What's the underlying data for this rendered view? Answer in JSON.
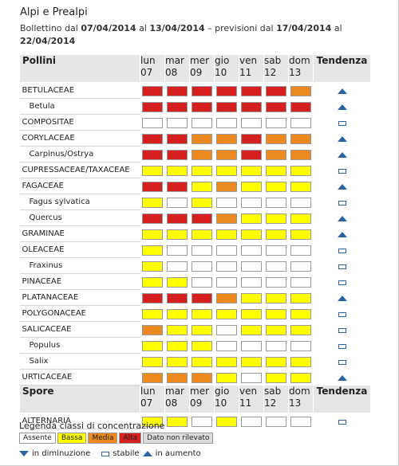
{
  "colors": {
    "Assente": "#ffffff",
    "Bassa": "#ffff00",
    "Media": "#ed8a1f",
    "Alta": "#d62020",
    "Dato non rilevato": "#dcdcdc"
  },
  "region_title": "Alpi e Prealpi",
  "bulletin": {
    "prefix": "Bollettino dal ",
    "start": "07/04/2014",
    "mid": " al ",
    "end": "13/04/2014",
    "forecast_prefix": " – previsioni dal ",
    "forecast_start": "17/04/2014",
    "forecast_mid": " al ",
    "forecast_end": "22/04/2014"
  },
  "headers": {
    "pollini": "Pollini",
    "spore": "Spore",
    "tendenza": "Tendenza",
    "days": [
      {
        "dow": "lun",
        "day": "07"
      },
      {
        "dow": "mar",
        "day": "08"
      },
      {
        "dow": "mer",
        "day": "09"
      },
      {
        "dow": "gio",
        "day": "10"
      },
      {
        "dow": "ven",
        "day": "11"
      },
      {
        "dow": "sab",
        "day": "12"
      },
      {
        "dow": "dom",
        "day": "13"
      }
    ]
  },
  "pollen_rows": [
    {
      "name": "BETULACEAE",
      "sub": false,
      "levels": [
        "Alta",
        "Alta",
        "Alta",
        "Alta",
        "Alta",
        "Alta",
        "Media"
      ],
      "trend": "up"
    },
    {
      "name": "Betula",
      "sub": true,
      "levels": [
        "Alta",
        "Alta",
        "Alta",
        "Alta",
        "Alta",
        "Alta",
        "Alta"
      ],
      "trend": "up"
    },
    {
      "name": "COMPOSITAE",
      "sub": false,
      "levels": [
        "Assente",
        "Assente",
        "Assente",
        "Assente",
        "Assente",
        "Assente",
        "Assente"
      ],
      "trend": "stable"
    },
    {
      "name": "CORYLACEAE",
      "sub": false,
      "levels": [
        "Alta",
        "Alta",
        "Media",
        "Media",
        "Alta",
        "Media",
        "Media"
      ],
      "trend": "up"
    },
    {
      "name": "Carpinus/Ostrya",
      "sub": true,
      "levels": [
        "Alta",
        "Alta",
        "Media",
        "Media",
        "Alta",
        "Media",
        "Media"
      ],
      "trend": "up"
    },
    {
      "name": "CUPRESSACEAE/TAXACEAE",
      "sub": false,
      "levels": [
        "Bassa",
        "Bassa",
        "Bassa",
        "Bassa",
        "Bassa",
        "Bassa",
        "Bassa"
      ],
      "trend": "stable"
    },
    {
      "name": "FAGACEAE",
      "sub": false,
      "levels": [
        "Alta",
        "Alta",
        "Bassa",
        "Media",
        "Bassa",
        "Bassa",
        "Bassa"
      ],
      "trend": "up"
    },
    {
      "name": "Fagus sylvatica",
      "sub": true,
      "levels": [
        "Bassa",
        "Assente",
        "Bassa",
        "Assente",
        "Assente",
        "Assente",
        "Assente"
      ],
      "trend": "stable"
    },
    {
      "name": "Quercus",
      "sub": true,
      "levels": [
        "Alta",
        "Alta",
        "Alta",
        "Media",
        "Bassa",
        "Bassa",
        "Bassa"
      ],
      "trend": "up"
    },
    {
      "name": "GRAMINAE",
      "sub": false,
      "levels": [
        "Bassa",
        "Bassa",
        "Bassa",
        "Bassa",
        "Bassa",
        "Bassa",
        "Bassa"
      ],
      "trend": "up"
    },
    {
      "name": "OLEACEAE",
      "sub": false,
      "levels": [
        "Bassa",
        "Assente",
        "Assente",
        "Assente",
        "Assente",
        "Assente",
        "Assente"
      ],
      "trend": "stable"
    },
    {
      "name": "Fraxinus",
      "sub": true,
      "levels": [
        "Bassa",
        "Assente",
        "Assente",
        "Assente",
        "Assente",
        "Assente",
        "Assente"
      ],
      "trend": "stable"
    },
    {
      "name": "PINACEAE",
      "sub": false,
      "levels": [
        "Bassa",
        "Bassa",
        "Assente",
        "Assente",
        "Assente",
        "Assente",
        "Assente"
      ],
      "trend": "stable"
    },
    {
      "name": "PLATANACEAE",
      "sub": false,
      "levels": [
        "Alta",
        "Alta",
        "Alta",
        "Media",
        "Bassa",
        "Bassa",
        "Bassa"
      ],
      "trend": "up"
    },
    {
      "name": "POLYGONACEAE",
      "sub": false,
      "levels": [
        "Bassa",
        "Bassa",
        "Bassa",
        "Bassa",
        "Bassa",
        "Bassa",
        "Bassa"
      ],
      "trend": "stable"
    },
    {
      "name": "SALICACEAE",
      "sub": false,
      "levels": [
        "Media",
        "Bassa",
        "Bassa",
        "Assente",
        "Bassa",
        "Bassa",
        "Bassa"
      ],
      "trend": "stable"
    },
    {
      "name": "Populus",
      "sub": true,
      "levels": [
        "Bassa",
        "Bassa",
        "Bassa",
        "Assente",
        "Assente",
        "Assente",
        "Assente"
      ],
      "trend": "stable"
    },
    {
      "name": "Salix",
      "sub": true,
      "levels": [
        "Bassa",
        "Bassa",
        "Bassa",
        "Bassa",
        "Bassa",
        "Bassa",
        "Bassa"
      ],
      "trend": "stable"
    },
    {
      "name": "URTICACEAE",
      "sub": false,
      "levels": [
        "Media",
        "Media",
        "Media",
        "Bassa",
        "Assente",
        "Bassa",
        "Bassa"
      ],
      "trend": "up"
    }
  ],
  "spore_rows": [
    {
      "name": "ALTERNARIA",
      "sub": false,
      "levels": [
        "Bassa",
        "Bassa",
        "Assente",
        "Bassa",
        "Assente",
        "Assente",
        "Assente"
      ],
      "trend": "stable"
    }
  ],
  "legend": {
    "title": "Legenda classi di concentrazione",
    "items": [
      {
        "label": "Assente",
        "color": "#ffffff"
      },
      {
        "label": "Bassa",
        "color": "#ffff00"
      },
      {
        "label": "Media",
        "color": "#ed8a1f"
      },
      {
        "label": "Alta",
        "color": "#d62020"
      },
      {
        "label": "Dato non rilevato",
        "color": "#dcdcdc"
      }
    ],
    "down_label": "in diminuzione",
    "stable_label": "stabile",
    "up_label": "in aumento"
  }
}
